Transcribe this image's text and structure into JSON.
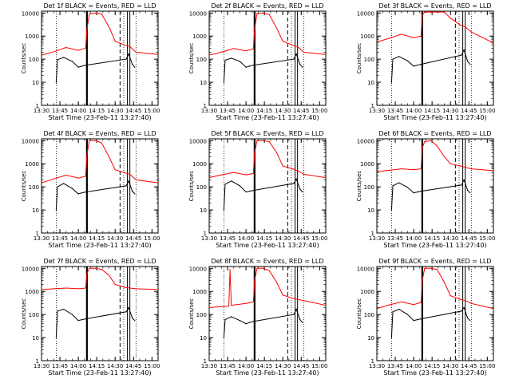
{
  "start_time_label": "Start Time (23-Feb-11 13:27:40)",
  "ylabel": "Counts/sec",
  "colors": {
    "events": "#000000",
    "lld": "#ff0000",
    "axes": "#000000",
    "background": "#ffffff"
  },
  "chart_data": [
    {
      "type": "line",
      "title": "Det 1f BLACK = Events, RED = LLD",
      "xlabel": "Start Time (23-Feb-11 13:27:40)",
      "ylabel": "Counts/sec",
      "y_scale": "log",
      "ylim": [
        1,
        12000
      ],
      "xlim": [
        "13:30",
        "15:05"
      ],
      "x_ticks": [
        "13:30",
        "13:45",
        "14:00",
        "14:15",
        "14:30",
        "14:45",
        "15:00"
      ],
      "y_ticks": [
        "1",
        "10",
        "100",
        "1000",
        "10000"
      ],
      "markers": {
        "dotted": [
          "13:42",
          "14:37",
          "14:47"
        ],
        "dashed": [
          "14:34"
        ],
        "solid": [
          "14:07",
          "14:40",
          "14:42"
        ]
      },
      "series": [
        {
          "name": "Events",
          "color": "#000000",
          "x": [
            "13:42",
            "13:43",
            "13:48",
            "13:55",
            "14:00",
            "14:03",
            "14:06",
            "14:39",
            "14:41",
            "14:44",
            "14:46"
          ],
          "values": [
            10,
            95,
            120,
            80,
            45,
            50,
            55,
            100,
            170,
            60,
            45
          ]
        },
        {
          "name": "LLD",
          "color": "#ff0000",
          "x": [
            "13:30",
            "13:40",
            "13:50",
            "14:00",
            "14:06",
            "14:07",
            "14:09",
            "14:14",
            "14:19",
            "14:25",
            "14:30",
            "14:38",
            "14:42",
            "14:47",
            "15:05"
          ],
          "values": [
            150,
            210,
            320,
            240,
            300,
            2000,
            9000,
            10000,
            9000,
            2500,
            600,
            400,
            350,
            200,
            160
          ]
        }
      ]
    },
    {
      "type": "line",
      "title": "Det 2f BLACK = Events, RED = LLD",
      "xlabel": "Start Time (23-Feb-11 13:27:40)",
      "ylabel": "Counts/sec",
      "y_scale": "log",
      "ylim": [
        1,
        12000
      ],
      "xlim": [
        "13:30",
        "15:05"
      ],
      "x_ticks": [
        "13:30",
        "13:45",
        "14:00",
        "14:15",
        "14:30",
        "14:45",
        "15:00"
      ],
      "y_ticks": [
        "1",
        "10",
        "100",
        "1000",
        "10000"
      ],
      "markers": {
        "dotted": [
          "13:42",
          "14:37",
          "14:47"
        ],
        "dashed": [
          "14:34"
        ],
        "solid": [
          "14:07",
          "14:40",
          "14:42"
        ]
      },
      "series": [
        {
          "name": "Events",
          "color": "#000000",
          "x": [
            "13:42",
            "13:43",
            "13:48",
            "13:55",
            "14:00",
            "14:03",
            "14:06",
            "14:39",
            "14:41",
            "14:44",
            "14:46"
          ],
          "values": [
            10,
            90,
            110,
            80,
            45,
            50,
            55,
            100,
            170,
            60,
            45
          ]
        },
        {
          "name": "LLD",
          "color": "#ff0000",
          "x": [
            "13:30",
            "13:40",
            "13:50",
            "14:00",
            "14:06",
            "14:07",
            "14:09",
            "14:14",
            "14:19",
            "14:25",
            "14:30",
            "14:38",
            "14:42",
            "14:47",
            "15:05"
          ],
          "values": [
            150,
            200,
            290,
            230,
            280,
            2000,
            9500,
            10000,
            8500,
            2200,
            600,
            400,
            350,
            200,
            160
          ]
        }
      ]
    },
    {
      "type": "line",
      "title": "Det 3f BLACK = Events, RED = LLD",
      "xlabel": "Start Time (23-Feb-11 13:27:40)",
      "ylabel": "Counts/sec",
      "y_scale": "log",
      "ylim": [
        1,
        12000
      ],
      "xlim": [
        "13:30",
        "15:05"
      ],
      "x_ticks": [
        "13:30",
        "13:45",
        "14:00",
        "14:15",
        "14:30",
        "14:45",
        "15:00"
      ],
      "y_ticks": [
        "1",
        "10",
        "100",
        "1000",
        "10000"
      ],
      "markers": {
        "dotted": [
          "13:42",
          "14:37",
          "14:47"
        ],
        "dashed": [
          "14:34"
        ],
        "solid": [
          "14:07",
          "14:40",
          "14:42"
        ]
      },
      "series": [
        {
          "name": "Events",
          "color": "#000000",
          "x": [
            "13:42",
            "13:43",
            "13:48",
            "13:55",
            "14:00",
            "14:03",
            "14:06",
            "14:39",
            "14:41",
            "14:44",
            "14:46"
          ],
          "values": [
            10,
            100,
            130,
            85,
            50,
            55,
            60,
            150,
            250,
            80,
            60
          ]
        },
        {
          "name": "LLD",
          "color": "#ff0000",
          "x": [
            "13:30",
            "13:40",
            "13:50",
            "14:00",
            "14:06",
            "14:07",
            "14:09",
            "14:14",
            "14:19",
            "14:25",
            "14:30",
            "14:38",
            "14:42",
            "14:47",
            "15:05"
          ],
          "values": [
            550,
            800,
            1200,
            850,
            1000,
            8000,
            11000,
            11000,
            11000,
            11000,
            6000,
            3000,
            2500,
            1500,
            500
          ]
        }
      ]
    },
    {
      "type": "line",
      "title": "Det 4f BLACK = Events, RED = LLD",
      "xlabel": "Start Time (23-Feb-11 13:27:40)",
      "ylabel": "Counts/sec",
      "y_scale": "log",
      "ylim": [
        1,
        12000
      ],
      "xlim": [
        "13:30",
        "15:05"
      ],
      "x_ticks": [
        "13:30",
        "13:45",
        "14:00",
        "14:15",
        "14:30",
        "14:45",
        "15:00"
      ],
      "y_ticks": [
        "1",
        "10",
        "100",
        "1000",
        "10000"
      ],
      "markers": {
        "dotted": [
          "13:42",
          "14:37",
          "14:47"
        ],
        "dashed": [
          "14:34"
        ],
        "solid": [
          "14:07",
          "14:40",
          "14:42"
        ]
      },
      "series": [
        {
          "name": "Events",
          "color": "#000000",
          "x": [
            "13:42",
            "13:43",
            "13:48",
            "13:55",
            "14:00",
            "14:03",
            "14:06",
            "14:39",
            "14:41",
            "14:44",
            "14:46"
          ],
          "values": [
            10,
            100,
            140,
            85,
            50,
            55,
            60,
            110,
            180,
            65,
            50
          ]
        },
        {
          "name": "LLD",
          "color": "#ff0000",
          "x": [
            "13:30",
            "13:40",
            "13:50",
            "14:00",
            "14:06",
            "14:07",
            "14:09",
            "14:14",
            "14:19",
            "14:25",
            "14:30",
            "14:38",
            "14:42",
            "14:47",
            "15:05"
          ],
          "values": [
            150,
            220,
            320,
            240,
            290,
            2500,
            10000,
            10000,
            8000,
            2000,
            550,
            400,
            350,
            200,
            150
          ]
        }
      ]
    },
    {
      "type": "line",
      "title": "Det 5f BLACK = Events, RED = LLD",
      "xlabel": "Start Time (23-Feb-11 13:27:40)",
      "ylabel": "Counts/sec",
      "y_scale": "log",
      "ylim": [
        1,
        12000
      ],
      "xlim": [
        "13:30",
        "15:05"
      ],
      "x_ticks": [
        "13:30",
        "13:45",
        "14:00",
        "14:15",
        "14:30",
        "14:45",
        "15:00"
      ],
      "y_ticks": [
        "1",
        "10",
        "100",
        "1000",
        "10000"
      ],
      "markers": {
        "dotted": [
          "13:42",
          "14:37",
          "14:47"
        ],
        "dashed": [
          "14:34"
        ],
        "solid": [
          "14:07",
          "14:40",
          "14:42"
        ]
      },
      "series": [
        {
          "name": "Events",
          "color": "#000000",
          "x": [
            "13:42",
            "13:43",
            "13:48",
            "13:55",
            "14:00",
            "14:03",
            "14:06",
            "14:39",
            "14:41",
            "14:44",
            "14:46"
          ],
          "values": [
            10,
            130,
            180,
            110,
            60,
            65,
            70,
            140,
            220,
            80,
            60
          ]
        },
        {
          "name": "LLD",
          "color": "#ff0000",
          "x": [
            "13:30",
            "13:40",
            "13:50",
            "14:00",
            "14:06",
            "14:07",
            "14:09",
            "14:14",
            "14:19",
            "14:25",
            "14:30",
            "14:38",
            "14:42",
            "14:47",
            "15:05"
          ],
          "values": [
            250,
            330,
            420,
            330,
            380,
            3000,
            10000,
            10000,
            9000,
            3000,
            800,
            600,
            500,
            350,
            250
          ]
        }
      ]
    },
    {
      "type": "line",
      "title": "Det 6f BLACK = Events, RED = LLD",
      "xlabel": "Start Time (23-Feb-11 13:27:40)",
      "ylabel": "Counts/sec",
      "y_scale": "log",
      "ylim": [
        1,
        12000
      ],
      "xlim": [
        "13:30",
        "15:05"
      ],
      "x_ticks": [
        "13:30",
        "13:45",
        "14:00",
        "14:15",
        "14:30",
        "14:45",
        "15:00"
      ],
      "y_ticks": [
        "1",
        "10",
        "100",
        "1000",
        "10000"
      ],
      "markers": {
        "dotted": [
          "13:42",
          "14:37",
          "14:47"
        ],
        "dashed": [
          "14:34"
        ],
        "solid": [
          "14:07",
          "14:40",
          "14:42"
        ]
      },
      "series": [
        {
          "name": "Events",
          "color": "#000000",
          "x": [
            "13:42",
            "13:43",
            "13:48",
            "13:55",
            "14:00",
            "14:03",
            "14:06",
            "14:39",
            "14:41",
            "14:44",
            "14:46"
          ],
          "values": [
            10,
            110,
            150,
            95,
            55,
            60,
            65,
            120,
            200,
            70,
            55
          ]
        },
        {
          "name": "LLD",
          "color": "#ff0000",
          "x": [
            "13:30",
            "13:40",
            "13:50",
            "14:00",
            "14:06",
            "14:07",
            "14:09",
            "14:14",
            "14:19",
            "14:25",
            "14:30",
            "14:38",
            "14:42",
            "14:47",
            "15:05"
          ],
          "values": [
            450,
            520,
            600,
            550,
            600,
            5000,
            9000,
            10000,
            6000,
            2000,
            1000,
            800,
            700,
            600,
            500
          ]
        }
      ]
    },
    {
      "type": "line",
      "title": "Det 7f BLACK = Events, RED = LLD",
      "xlabel": "Start Time (23-Feb-11 13:27:40)",
      "ylabel": "Counts/sec",
      "y_scale": "log",
      "ylim": [
        1,
        12000
      ],
      "xlim": [
        "13:30",
        "15:05"
      ],
      "x_ticks": [
        "13:30",
        "13:45",
        "14:00",
        "14:15",
        "14:30",
        "14:45",
        "15:00"
      ],
      "y_ticks": [
        "1",
        "10",
        "100",
        "1000",
        "10000"
      ],
      "markers": {
        "dotted": [
          "13:42",
          "14:37",
          "14:47"
        ],
        "dashed": [
          "14:34"
        ],
        "solid": [
          "14:07",
          "14:40",
          "14:42"
        ]
      },
      "series": [
        {
          "name": "Events",
          "color": "#000000",
          "x": [
            "13:42",
            "13:43",
            "13:48",
            "13:55",
            "14:00",
            "14:03",
            "14:06",
            "14:39",
            "14:41",
            "14:44",
            "14:46"
          ],
          "values": [
            10,
            140,
            170,
            100,
            55,
            60,
            65,
            130,
            200,
            70,
            55
          ]
        },
        {
          "name": "LLD",
          "color": "#ff0000",
          "x": [
            "13:30",
            "13:40",
            "13:50",
            "14:00",
            "14:06",
            "14:07",
            "14:09",
            "14:14",
            "14:19",
            "14:25",
            "14:30",
            "14:38",
            "14:42",
            "14:47",
            "15:05"
          ],
          "values": [
            1200,
            1300,
            1400,
            1300,
            1400,
            6000,
            10000,
            10000,
            9000,
            5000,
            2000,
            1500,
            1400,
            1300,
            1200
          ]
        }
      ]
    },
    {
      "type": "line",
      "title": "Det 8f BLACK = Events, RED = LLD",
      "xlabel": "Start Time (23-Feb-11 13:27:40)",
      "ylabel": "Counts/sec",
      "y_scale": "log",
      "ylim": [
        1,
        12000
      ],
      "xlim": [
        "13:30",
        "15:05"
      ],
      "x_ticks": [
        "13:30",
        "13:45",
        "14:00",
        "14:15",
        "14:30",
        "14:45",
        "15:00"
      ],
      "y_ticks": [
        "1",
        "10",
        "100",
        "1000",
        "10000"
      ],
      "markers": {
        "dotted": [
          "13:42",
          "14:37",
          "14:47"
        ],
        "dashed": [
          "14:34"
        ],
        "solid": [
          "14:07",
          "14:40",
          "14:42"
        ]
      },
      "series": [
        {
          "name": "Events",
          "color": "#000000",
          "x": [
            "13:42",
            "13:43",
            "13:48",
            "13:55",
            "14:00",
            "14:03",
            "14:06",
            "14:39",
            "14:41",
            "14:44",
            "14:46"
          ],
          "values": [
            10,
            60,
            80,
            55,
            40,
            45,
            50,
            100,
            170,
            60,
            45
          ]
        },
        {
          "name": "LLD",
          "color": "#ff0000",
          "x": [
            "13:30",
            "13:40",
            "13:46",
            "13:47",
            "13:48",
            "14:00",
            "14:06",
            "14:07",
            "14:09",
            "14:14",
            "14:19",
            "14:25",
            "14:30",
            "14:38",
            "14:42",
            "14:47",
            "15:05"
          ],
          "values": [
            200,
            220,
            230,
            9000,
            250,
            300,
            350,
            3000,
            10000,
            10000,
            8000,
            2500,
            700,
            500,
            450,
            400,
            250
          ]
        }
      ]
    },
    {
      "type": "line",
      "title": "Det 9f BLACK = Events, RED = LLD",
      "xlabel": "Start Time (23-Feb-11 13:27:40)",
      "ylabel": "Counts/sec",
      "y_scale": "log",
      "ylim": [
        1,
        12000
      ],
      "xlim": [
        "13:30",
        "15:05"
      ],
      "x_ticks": [
        "13:30",
        "13:45",
        "14:00",
        "14:15",
        "14:30",
        "14:45",
        "15:00"
      ],
      "y_ticks": [
        "1",
        "10",
        "100",
        "1000",
        "10000"
      ],
      "markers": {
        "dotted": [
          "13:42",
          "14:37",
          "14:47"
        ],
        "dashed": [
          "14:34"
        ],
        "solid": [
          "14:07",
          "14:40",
          "14:42"
        ]
      },
      "series": [
        {
          "name": "Events",
          "color": "#000000",
          "x": [
            "13:42",
            "13:43",
            "13:48",
            "13:55",
            "14:00",
            "14:03",
            "14:06",
            "14:39",
            "14:41",
            "14:44",
            "14:46"
          ],
          "values": [
            10,
            130,
            170,
            100,
            55,
            60,
            65,
            140,
            200,
            70,
            55
          ]
        },
        {
          "name": "LLD",
          "color": "#ff0000",
          "x": [
            "13:30",
            "13:40",
            "13:50",
            "14:00",
            "14:06",
            "14:07",
            "14:09",
            "14:14",
            "14:19",
            "14:25",
            "14:30",
            "14:38",
            "14:42",
            "14:47",
            "15:05"
          ],
          "values": [
            180,
            260,
            350,
            270,
            330,
            3000,
            10000,
            10000,
            9000,
            2500,
            650,
            450,
            400,
            300,
            180
          ]
        }
      ]
    }
  ]
}
